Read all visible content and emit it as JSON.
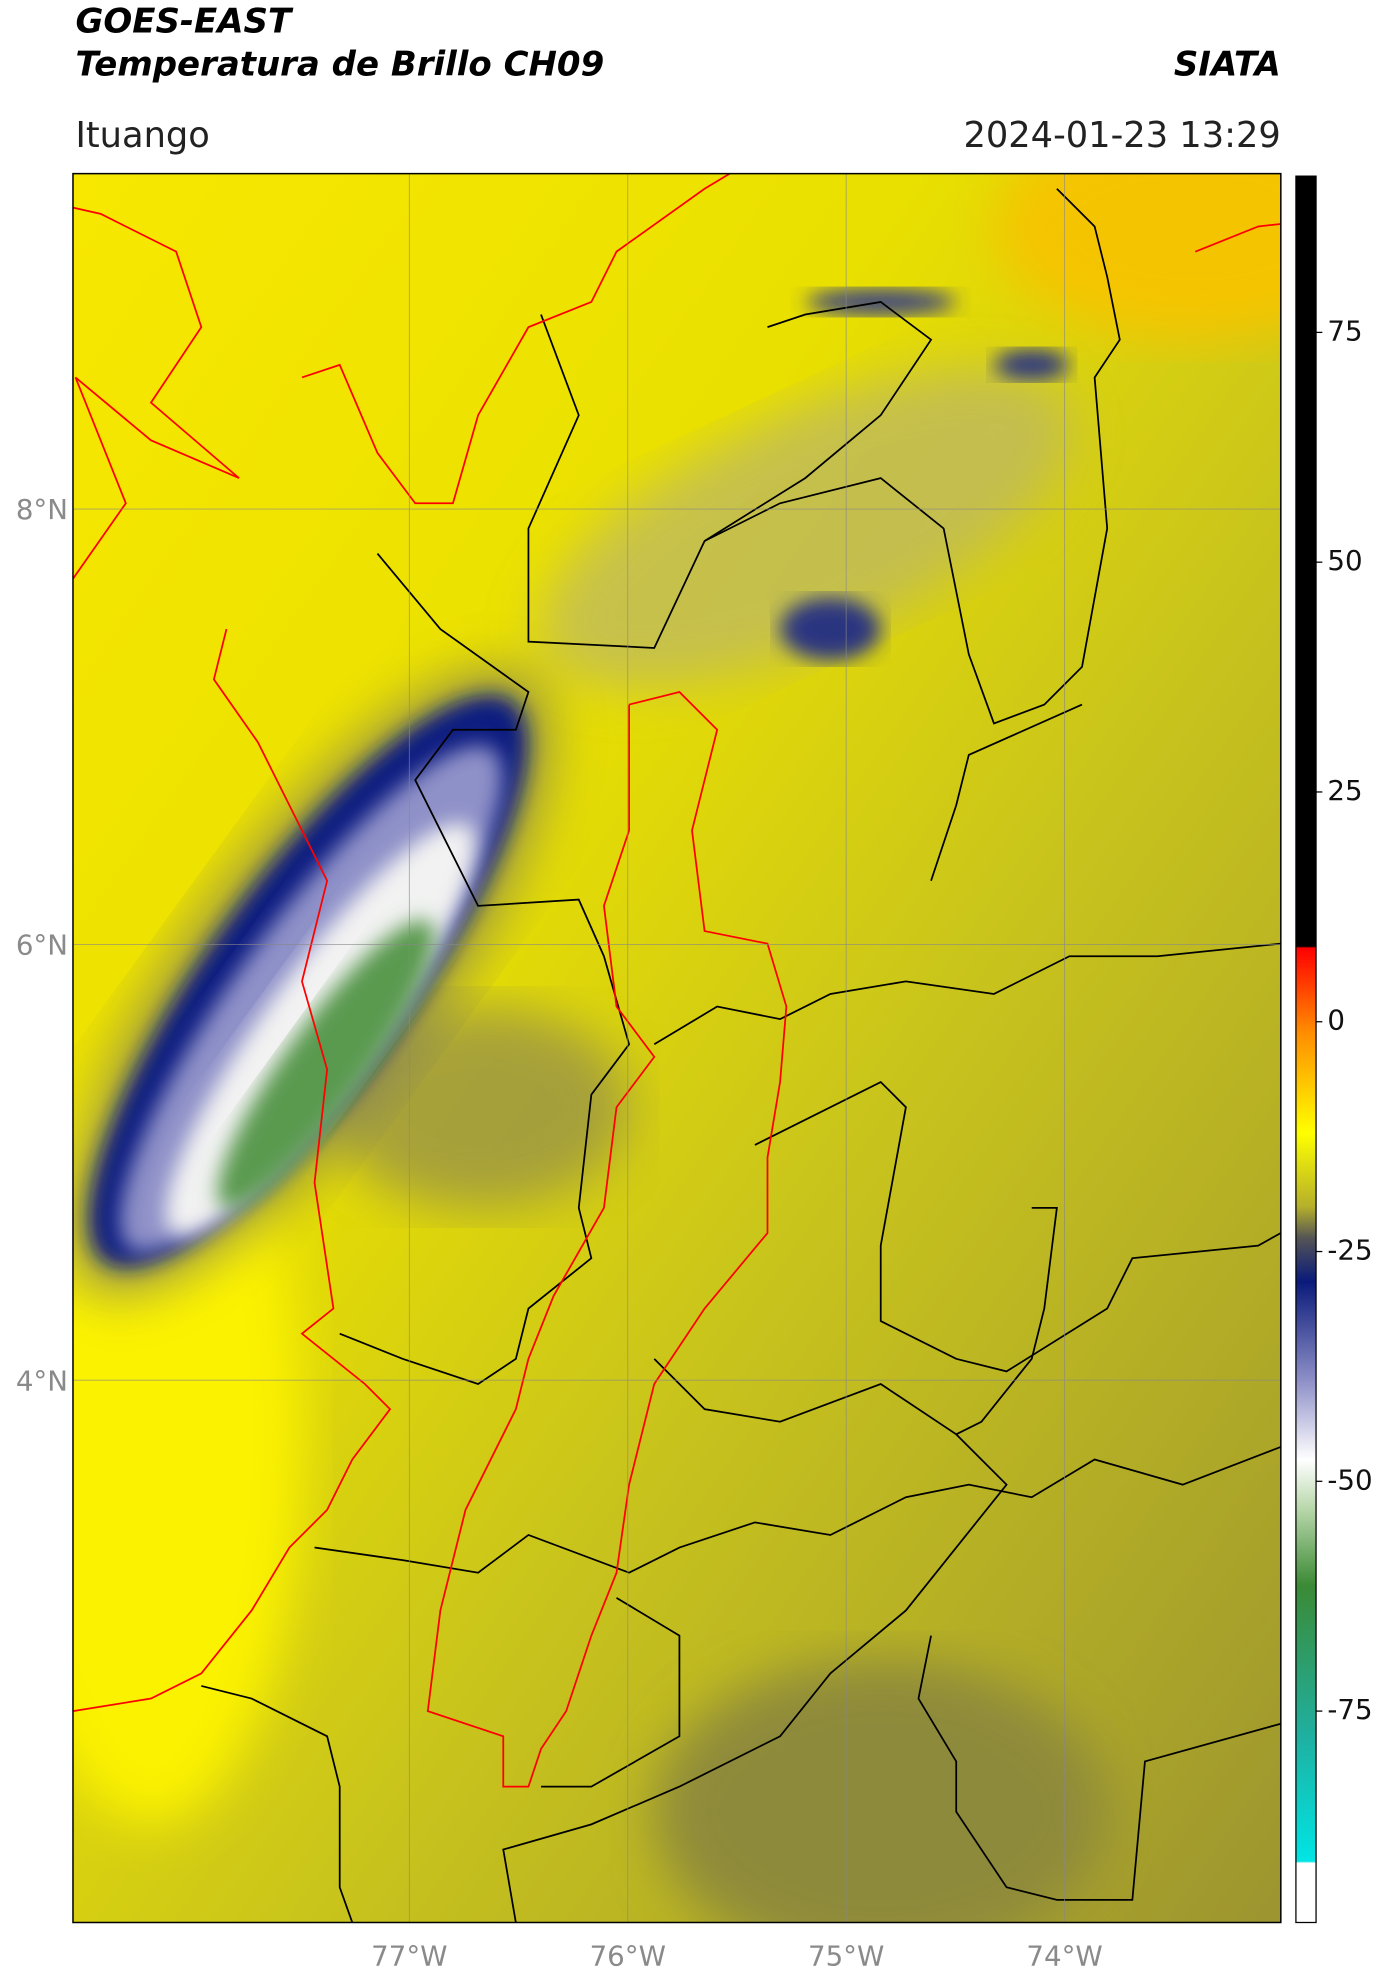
{
  "header": {
    "title": "GOES-EAST",
    "subtitle": "Temperatura de Brillo CH09",
    "source": "SIATA",
    "location": "Ituango",
    "datetime": "2024-01-23 13:29"
  },
  "map": {
    "lat_lim": [
      1.51,
      9.54
    ],
    "lon_lim": [
      -78.54,
      -73.01
    ],
    "lat_ticks": [
      {
        "value": 8,
        "label": "8°N"
      },
      {
        "value": 6,
        "label": "6°N"
      },
      {
        "value": 4,
        "label": "4°N"
      }
    ],
    "lon_ticks": [
      {
        "value": -77,
        "label": "77°W"
      },
      {
        "value": -76,
        "label": "76°W"
      },
      {
        "value": -75,
        "label": "75°W"
      },
      {
        "value": -74,
        "label": "74°W"
      }
    ],
    "grid": true
  },
  "colorbar": {
    "lim": [
      -98,
      92
    ],
    "ticks": [
      75,
      50,
      25,
      0,
      -25,
      -50,
      -75
    ]
  }
}
